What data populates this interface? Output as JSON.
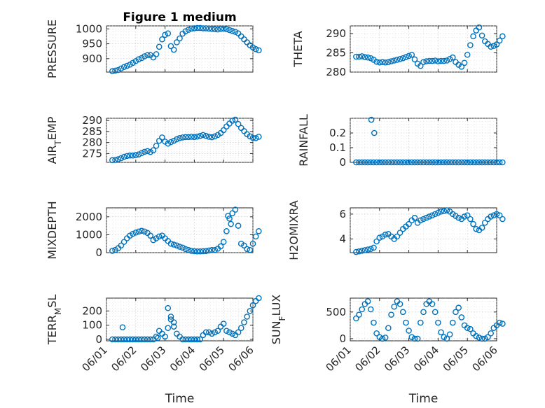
{
  "figure": {
    "title": "Figure 1 medium"
  },
  "chart_data": [
    {
      "id": "pressure",
      "type": "scatter",
      "title": "Figure 1 medium",
      "ylabel": "PRESSURE",
      "ylabel_parts": [
        {
          "t": "PRESSURE"
        }
      ],
      "xlim": [
        0,
        5
      ],
      "ylim": [
        855,
        1010
      ],
      "yticks": [
        900,
        950,
        1000
      ],
      "x_tick_labels": [],
      "xlabel": "",
      "x": [
        0.2,
        0.3,
        0.4,
        0.5,
        0.6,
        0.7,
        0.8,
        0.9,
        1.0,
        1.1,
        1.2,
        1.3,
        1.4,
        1.5,
        1.6,
        1.7,
        1.8,
        1.9,
        2.0,
        2.1,
        2.2,
        2.3,
        2.4,
        2.5,
        2.6,
        2.7,
        2.8,
        2.9,
        3.0,
        3.1,
        3.2,
        3.3,
        3.4,
        3.5,
        3.6,
        3.7,
        3.8,
        3.9,
        4.0,
        4.1,
        4.2,
        4.3,
        4.4,
        4.5,
        4.6,
        4.7,
        4.8,
        4.9,
        5.0,
        5.1,
        5.2
      ],
      "values": [
        858,
        860,
        862,
        867,
        872,
        876,
        880,
        886,
        892,
        898,
        902,
        908,
        912,
        912,
        904,
        915,
        940,
        965,
        980,
        985,
        942,
        930,
        955,
        968,
        984,
        992,
        997,
        1001,
        1002,
        1003,
        1003,
        1002,
        1002,
        1001,
        1000,
        999,
        998,
        1000,
        1001,
        999,
        996,
        993,
        990,
        985,
        975,
        965,
        955,
        945,
        938,
        932,
        928
      ]
    },
    {
      "id": "theta",
      "type": "scatter",
      "ylabel": "THETA",
      "ylabel_parts": [
        {
          "t": "THETA"
        }
      ],
      "xlim": [
        0,
        5
      ],
      "ylim": [
        280,
        292
      ],
      "yticks": [
        280,
        285,
        290
      ],
      "x_tick_labels": [],
      "xlabel": "",
      "x": [
        0.2,
        0.3,
        0.4,
        0.5,
        0.6,
        0.7,
        0.8,
        0.9,
        1.0,
        1.1,
        1.2,
        1.3,
        1.4,
        1.5,
        1.6,
        1.7,
        1.8,
        1.9,
        2.0,
        2.1,
        2.2,
        2.3,
        2.4,
        2.5,
        2.6,
        2.7,
        2.8,
        2.9,
        3.0,
        3.1,
        3.2,
        3.3,
        3.4,
        3.5,
        3.6,
        3.7,
        3.8,
        3.9,
        4.0,
        4.1,
        4.2,
        4.3,
        4.4,
        4.5,
        4.6,
        4.7,
        4.8,
        4.9,
        5.0,
        5.1,
        5.2
      ],
      "values": [
        284,
        284,
        284.1,
        283.9,
        283.8,
        283.6,
        283.2,
        282.7,
        282.5,
        282.6,
        282.5,
        282.6,
        282.8,
        283,
        283.2,
        283.4,
        283.6,
        283.9,
        284.2,
        284.5,
        283.3,
        282.2,
        281.6,
        282.6,
        282.8,
        282.9,
        282.9,
        283,
        282.8,
        282.9,
        282.9,
        283,
        283.4,
        283.8,
        282.6,
        281.9,
        281.4,
        282.4,
        284.5,
        287,
        289.3,
        290.8,
        291.6,
        289.5,
        288,
        287.3,
        286.6,
        286.8,
        287.2,
        288.2,
        289.3
      ]
    },
    {
      "id": "air-temp",
      "type": "scatter",
      "ylabel": "AIR_TEMP",
      "ylabel_parts": [
        {
          "t": "AIR"
        },
        {
          "t": "T",
          "sub": true
        },
        {
          "t": "EMP"
        }
      ],
      "xlim": [
        0,
        5
      ],
      "ylim": [
        271,
        291
      ],
      "yticks": [
        275,
        280,
        285,
        290
      ],
      "x_tick_labels": [],
      "xlabel": "",
      "x": [
        0.2,
        0.3,
        0.4,
        0.5,
        0.6,
        0.7,
        0.8,
        0.9,
        1.0,
        1.1,
        1.2,
        1.3,
        1.4,
        1.5,
        1.6,
        1.7,
        1.8,
        1.9,
        2.0,
        2.1,
        2.2,
        2.3,
        2.4,
        2.5,
        2.6,
        2.7,
        2.8,
        2.9,
        3.0,
        3.1,
        3.2,
        3.3,
        3.4,
        3.5,
        3.6,
        3.7,
        3.8,
        3.9,
        4.0,
        4.1,
        4.2,
        4.3,
        4.4,
        4.5,
        4.6,
        4.7,
        4.8,
        4.9,
        5.0,
        5.1,
        5.2
      ],
      "values": [
        272,
        272.1,
        272.4,
        272.9,
        273.5,
        273.9,
        274.1,
        274.1,
        274.3,
        274.6,
        275.2,
        275.8,
        276.1,
        275.7,
        276.5,
        278.5,
        280.8,
        282.3,
        280.4,
        279.5,
        280.2,
        280.8,
        281.5,
        282,
        282.3,
        282.5,
        282.5,
        282.6,
        282.5,
        282.7,
        283,
        283.4,
        283,
        282.6,
        282.4,
        282.8,
        283.4,
        284.3,
        285.6,
        287.3,
        288.6,
        289.9,
        290.4,
        288.4,
        286.6,
        285.2,
        283.8,
        282.8,
        282.1,
        282,
        282.6
      ]
    },
    {
      "id": "rainfall",
      "type": "scatter",
      "ylabel": "RAINFALL",
      "ylabel_parts": [
        {
          "t": "RAINFALL"
        }
      ],
      "xlim": [
        0,
        5
      ],
      "ylim": [
        0,
        0.3
      ],
      "yticks": [
        0,
        0.1,
        0.2
      ],
      "x_tick_labels": [],
      "xlabel": "",
      "x": [
        0.2,
        0.3,
        0.4,
        0.5,
        0.6,
        0.7,
        0.8,
        0.9,
        1.0,
        1.1,
        1.2,
        1.3,
        1.4,
        1.5,
        1.6,
        1.7,
        1.8,
        1.9,
        2.0,
        2.1,
        2.2,
        2.3,
        2.4,
        2.5,
        2.6,
        2.7,
        2.8,
        2.9,
        3.0,
        3.1,
        3.2,
        3.3,
        3.4,
        3.5,
        3.6,
        3.7,
        3.8,
        3.9,
        4.0,
        4.1,
        4.2,
        4.3,
        4.4,
        4.5,
        4.6,
        4.7,
        4.8,
        4.9,
        5.0,
        5.1,
        5.2,
        0.72,
        0.82
      ],
      "values": [
        0,
        0,
        0,
        0,
        0,
        0,
        0,
        0,
        0,
        0,
        0,
        0,
        0,
        0,
        0,
        0,
        0,
        0,
        0,
        0,
        0,
        0,
        0,
        0,
        0,
        0,
        0,
        0,
        0,
        0,
        0,
        0,
        0,
        0,
        0,
        0,
        0,
        0,
        0,
        0,
        0,
        0,
        0,
        0,
        0,
        0,
        0,
        0,
        0,
        0,
        0,
        0.29,
        0.2
      ]
    },
    {
      "id": "mixdepth",
      "type": "scatter",
      "ylabel": "MIXDEPTH",
      "ylabel_parts": [
        {
          "t": "MIXDEPTH"
        }
      ],
      "xlim": [
        0,
        5
      ],
      "ylim": [
        0,
        2500
      ],
      "yticks": [
        0,
        1000,
        2000
      ],
      "x_tick_labels": [],
      "xlabel": "",
      "x": [
        0.2,
        0.3,
        0.4,
        0.5,
        0.6,
        0.7,
        0.8,
        0.9,
        1.0,
        1.1,
        1.2,
        1.3,
        1.4,
        1.5,
        1.6,
        1.7,
        1.8,
        1.9,
        2.0,
        2.1,
        2.2,
        2.3,
        2.4,
        2.5,
        2.6,
        2.7,
        2.8,
        2.9,
        3.0,
        3.1,
        3.2,
        3.3,
        3.4,
        3.5,
        3.6,
        3.7,
        3.8,
        3.9,
        4.0,
        4.1,
        4.2,
        4.3,
        4.4,
        4.5,
        4.6,
        4.7,
        4.8,
        4.9,
        5.0,
        5.1,
        5.2,
        4.15,
        4.25
      ],
      "values": [
        100,
        150,
        250,
        400,
        600,
        800,
        950,
        1050,
        1120,
        1180,
        1220,
        1180,
        1100,
        950,
        700,
        800,
        900,
        950,
        800,
        650,
        500,
        450,
        400,
        330,
        280,
        200,
        150,
        100,
        80,
        70,
        70,
        80,
        90,
        120,
        150,
        150,
        220,
        350,
        600,
        1200,
        1900,
        2200,
        2400,
        1500,
        500,
        400,
        200,
        150,
        500,
        900,
        1200,
        2050,
        1600
      ]
    },
    {
      "id": "h2omixra",
      "type": "scatter",
      "ylabel": "H2OMIXRA",
      "ylabel_parts": [
        {
          "t": "H2OMIXRA"
        }
      ],
      "xlim": [
        0,
        5
      ],
      "ylim": [
        2.9,
        6.5
      ],
      "yticks": [
        4,
        6
      ],
      "x_tick_labels": [],
      "xlabel": "",
      "x": [
        0.2,
        0.3,
        0.4,
        0.5,
        0.6,
        0.7,
        0.8,
        0.9,
        1.0,
        1.1,
        1.2,
        1.3,
        1.4,
        1.5,
        1.6,
        1.7,
        1.8,
        1.9,
        2.0,
        2.1,
        2.2,
        2.3,
        2.4,
        2.5,
        2.6,
        2.7,
        2.8,
        2.9,
        3.0,
        3.1,
        3.2,
        3.3,
        3.4,
        3.5,
        3.6,
        3.7,
        3.8,
        3.9,
        4.0,
        4.1,
        4.2,
        4.3,
        4.4,
        4.5,
        4.6,
        4.7,
        4.8,
        4.9,
        5.0,
        5.1,
        5.2
      ],
      "values": [
        2.95,
        3,
        3.05,
        3.1,
        3.15,
        3.2,
        3.3,
        3.8,
        4.1,
        4.2,
        4.35,
        4.4,
        4.2,
        4,
        4.2,
        4.5,
        4.8,
        5,
        5.2,
        5.5,
        5.7,
        5.3,
        5.5,
        5.6,
        5.7,
        5.8,
        5.9,
        6,
        6.1,
        6.2,
        6.25,
        6.3,
        6.2,
        6,
        5.85,
        5.7,
        5.6,
        5.8,
        5.9,
        5.6,
        5.2,
        4.8,
        4.7,
        4.9,
        5.3,
        5.6,
        5.8,
        5.9,
        6,
        5.9,
        5.6
      ]
    },
    {
      "id": "terr-msl",
      "type": "scatter",
      "ylabel": "TERR_MSL",
      "ylabel_parts": [
        {
          "t": "TERR"
        },
        {
          "t": "M",
          "sub": true
        },
        {
          "t": "SL"
        }
      ],
      "xlim": [
        0,
        5
      ],
      "ylim": [
        -10,
        290
      ],
      "yticks": [
        0,
        100,
        200
      ],
      "x_tick_labels": [
        "06/01",
        "06/02",
        "06/03",
        "06/04",
        "06/05",
        "06/06"
      ],
      "xlabel": "Time",
      "x": [
        0.2,
        0.3,
        0.4,
        0.5,
        0.6,
        0.7,
        0.8,
        0.9,
        1.0,
        1.1,
        1.2,
        1.3,
        1.4,
        1.5,
        1.6,
        1.7,
        1.8,
        1.9,
        2.0,
        2.1,
        2.2,
        2.3,
        2.4,
        2.5,
        2.6,
        2.7,
        2.8,
        2.9,
        3.0,
        3.1,
        3.2,
        3.3,
        3.4,
        3.5,
        3.6,
        3.7,
        3.8,
        3.9,
        4.0,
        4.1,
        4.2,
        4.3,
        4.4,
        4.5,
        4.6,
        4.7,
        4.8,
        4.9,
        5.0,
        5.1,
        5.2,
        0.55,
        2.1,
        2.2,
        2.3,
        1.75
      ],
      "values": [
        0,
        0,
        0,
        0,
        0,
        0,
        0,
        0,
        0,
        0,
        0,
        0,
        0,
        0,
        0,
        20,
        60,
        40,
        20,
        80,
        140,
        120,
        40,
        20,
        0,
        0,
        0,
        0,
        0,
        0,
        0,
        30,
        50,
        50,
        40,
        50,
        60,
        90,
        110,
        60,
        50,
        40,
        30,
        50,
        80,
        120,
        160,
        200,
        240,
        270,
        290,
        85,
        220,
        160,
        90,
        10
      ]
    },
    {
      "id": "sun-flux",
      "type": "scatter",
      "ylabel": "SUN_FLUX",
      "ylabel_parts": [
        {
          "t": "SUN"
        },
        {
          "t": "F",
          "sub": true
        },
        {
          "t": "LUX"
        }
      ],
      "xlim": [
        0,
        5
      ],
      "ylim": [
        -40,
        760
      ],
      "yticks": [
        0,
        500
      ],
      "x_tick_labels": [
        "06/01",
        "06/02",
        "06/03",
        "06/04",
        "06/05",
        "06/06"
      ],
      "xlabel": "Time",
      "x": [
        0.2,
        0.3,
        0.4,
        0.5,
        0.6,
        0.7,
        0.8,
        0.9,
        1.0,
        1.1,
        1.2,
        1.3,
        1.4,
        1.5,
        1.6,
        1.7,
        1.8,
        1.9,
        2.0,
        2.1,
        2.2,
        2.3,
        2.4,
        2.5,
        2.6,
        2.7,
        2.8,
        2.9,
        3.0,
        3.1,
        3.2,
        3.3,
        3.4,
        3.5,
        3.6,
        3.7,
        3.8,
        3.9,
        4.0,
        4.1,
        4.2,
        4.3,
        4.4,
        4.5,
        4.6,
        4.7,
        4.8,
        4.9,
        5.0,
        5.1,
        5.2
      ],
      "values": [
        380,
        450,
        550,
        650,
        700,
        550,
        300,
        100,
        30,
        0,
        20,
        200,
        450,
        600,
        700,
        650,
        500,
        300,
        150,
        30,
        0,
        0,
        300,
        500,
        650,
        700,
        650,
        500,
        300,
        120,
        30,
        0,
        80,
        300,
        500,
        580,
        400,
        250,
        200,
        180,
        100,
        50,
        20,
        0,
        0,
        30,
        100,
        200,
        250,
        300,
        280
      ]
    }
  ]
}
